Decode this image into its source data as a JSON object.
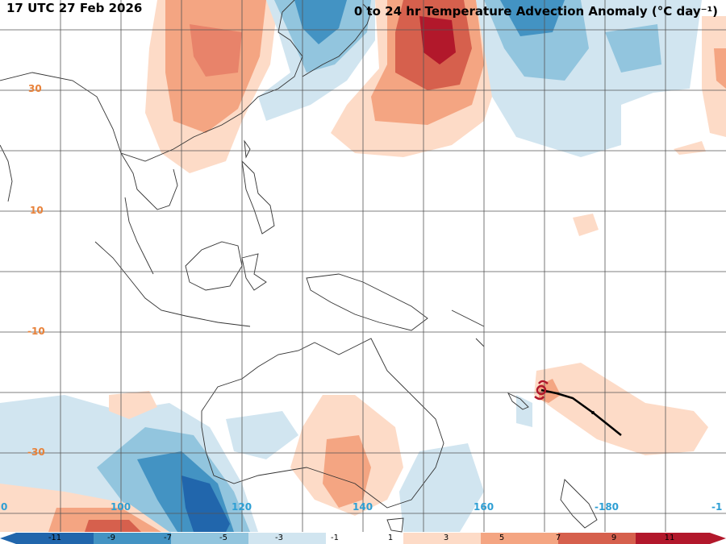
{
  "header": {
    "timestamp": "17 UTC 27 Feb 2026",
    "title": "0 to 24 hr Temperature Advection Anomaly (°C day⁻¹)"
  },
  "map": {
    "lat_labels": [
      "30",
      "10",
      "-10",
      "-30"
    ],
    "lon_labels": [
      "100",
      "120",
      "140",
      "160",
      "-180"
    ],
    "lon_edge_left": "0",
    "lon_edge_right": "-1"
  },
  "colorbar": {
    "ticks": [
      "-11",
      "-9",
      "-7",
      "-5",
      "-3",
      "-1",
      "1",
      "3",
      "5",
      "7",
      "9",
      "11"
    ],
    "colors": [
      "#2166ac",
      "#4393c3",
      "#92c5de",
      "#d1e5f0",
      "#ffffff",
      "#fddbc7",
      "#f4a582",
      "#d6604d",
      "#b2182b"
    ]
  },
  "storm_track": {
    "icon": "tropical-cyclone-icon"
  }
}
